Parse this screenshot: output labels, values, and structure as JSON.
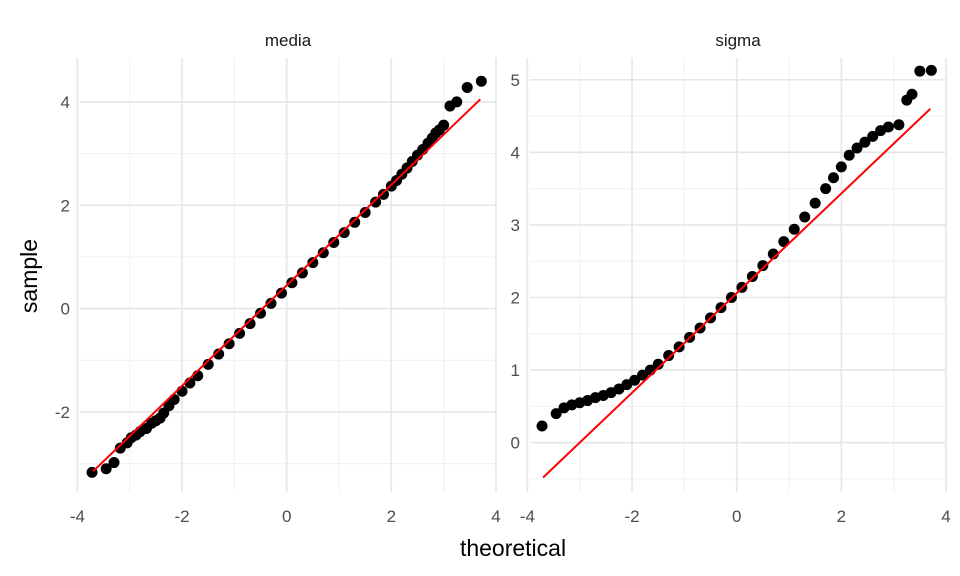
{
  "chart_data": {
    "type": "scatter",
    "xlabel": "theoretical",
    "ylabel": "sample",
    "grid": true,
    "shared_x_ticks": [
      "-4",
      "-2",
      "0",
      "2",
      "4"
    ],
    "colors": {
      "points": "#000000",
      "reference_line": "#ff0000",
      "grid": "#e6e6e6"
    },
    "panels": [
      {
        "strip": "media",
        "xlim": [
          -3.95,
          4.0
        ],
        "ylim": [
          -3.55,
          4.85
        ],
        "yticks": [
          -2,
          0,
          2,
          4
        ],
        "ytick_labels": [
          "-2",
          "0",
          "2",
          "4"
        ],
        "line": {
          "x": [
            -3.7,
            3.7
          ],
          "y": [
            -3.15,
            4.05
          ]
        },
        "points": [
          [
            -3.72,
            -3.17
          ],
          [
            -3.45,
            -3.1
          ],
          [
            -3.3,
            -2.98
          ],
          [
            -3.18,
            -2.7
          ],
          [
            -3.05,
            -2.6
          ],
          [
            -2.97,
            -2.5
          ],
          [
            -2.88,
            -2.45
          ],
          [
            -2.8,
            -2.38
          ],
          [
            -2.68,
            -2.32
          ],
          [
            -2.58,
            -2.22
          ],
          [
            -2.5,
            -2.17
          ],
          [
            -2.42,
            -2.12
          ],
          [
            -2.35,
            -2.02
          ],
          [
            -2.25,
            -1.88
          ],
          [
            -2.15,
            -1.76
          ],
          [
            -2.0,
            -1.6
          ],
          [
            -1.85,
            -1.44
          ],
          [
            -1.7,
            -1.3
          ],
          [
            -1.5,
            -1.08
          ],
          [
            -1.3,
            -0.88
          ],
          [
            -1.1,
            -0.68
          ],
          [
            -0.9,
            -0.48
          ],
          [
            -0.7,
            -0.29
          ],
          [
            -0.5,
            -0.09
          ],
          [
            -0.3,
            0.1
          ],
          [
            -0.1,
            0.3
          ],
          [
            0.1,
            0.5
          ],
          [
            0.3,
            0.69
          ],
          [
            0.5,
            0.89
          ],
          [
            0.7,
            1.08
          ],
          [
            0.9,
            1.28
          ],
          [
            1.1,
            1.47
          ],
          [
            1.3,
            1.67
          ],
          [
            1.5,
            1.86
          ],
          [
            1.7,
            2.06
          ],
          [
            1.85,
            2.21
          ],
          [
            2.0,
            2.37
          ],
          [
            2.1,
            2.48
          ],
          [
            2.2,
            2.6
          ],
          [
            2.3,
            2.72
          ],
          [
            2.4,
            2.85
          ],
          [
            2.5,
            2.97
          ],
          [
            2.6,
            3.08
          ],
          [
            2.7,
            3.2
          ],
          [
            2.78,
            3.3
          ],
          [
            2.85,
            3.4
          ],
          [
            2.92,
            3.46
          ],
          [
            3.0,
            3.55
          ],
          [
            3.12,
            3.92
          ],
          [
            3.25,
            4.0
          ],
          [
            3.45,
            4.28
          ],
          [
            3.72,
            4.4
          ]
        ]
      },
      {
        "strip": "sigma",
        "xlim": [
          -3.95,
          4.0
        ],
        "ylim": [
          -0.68,
          5.3
        ],
        "yticks": [
          0,
          1,
          2,
          3,
          4,
          5
        ],
        "ytick_labels": [
          "0",
          "1",
          "2",
          "3",
          "4",
          "5"
        ],
        "line": {
          "x": [
            -3.7,
            3.7
          ],
          "y": [
            -0.48,
            4.6
          ]
        },
        "points": [
          [
            -3.72,
            0.23
          ],
          [
            -3.45,
            0.4
          ],
          [
            -3.3,
            0.48
          ],
          [
            -3.15,
            0.52
          ],
          [
            -3.0,
            0.55
          ],
          [
            -2.85,
            0.58
          ],
          [
            -2.7,
            0.62
          ],
          [
            -2.55,
            0.65
          ],
          [
            -2.4,
            0.69
          ],
          [
            -2.25,
            0.74
          ],
          [
            -2.1,
            0.8
          ],
          [
            -1.95,
            0.86
          ],
          [
            -1.8,
            0.93
          ],
          [
            -1.65,
            1.0
          ],
          [
            -1.5,
            1.08
          ],
          [
            -1.3,
            1.2
          ],
          [
            -1.1,
            1.32
          ],
          [
            -0.9,
            1.45
          ],
          [
            -0.7,
            1.58
          ],
          [
            -0.5,
            1.72
          ],
          [
            -0.3,
            1.86
          ],
          [
            -0.1,
            2.0
          ],
          [
            0.1,
            2.14
          ],
          [
            0.3,
            2.29
          ],
          [
            0.5,
            2.44
          ],
          [
            0.7,
            2.6
          ],
          [
            0.9,
            2.77
          ],
          [
            1.1,
            2.94
          ],
          [
            1.3,
            3.11
          ],
          [
            1.5,
            3.3
          ],
          [
            1.7,
            3.5
          ],
          [
            1.85,
            3.65
          ],
          [
            2.0,
            3.8
          ],
          [
            2.15,
            3.96
          ],
          [
            2.3,
            4.06
          ],
          [
            2.45,
            4.14
          ],
          [
            2.6,
            4.22
          ],
          [
            2.75,
            4.3
          ],
          [
            2.9,
            4.35
          ],
          [
            3.1,
            4.38
          ],
          [
            3.25,
            4.72
          ],
          [
            3.35,
            4.8
          ],
          [
            3.5,
            5.12
          ],
          [
            3.72,
            5.13
          ]
        ]
      }
    ]
  }
}
